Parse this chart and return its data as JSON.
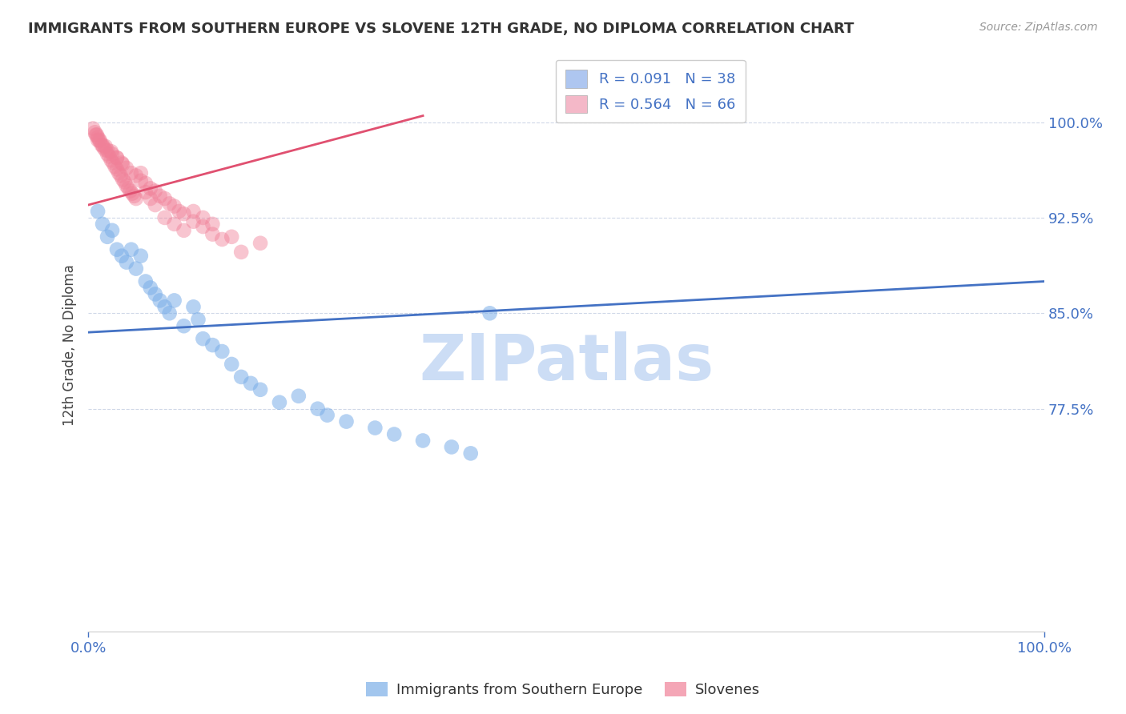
{
  "title": "IMMIGRANTS FROM SOUTHERN EUROPE VS SLOVENE 12TH GRADE, NO DIPLOMA CORRELATION CHART",
  "source": "Source: ZipAtlas.com",
  "ylabel": "12th Grade, No Diploma",
  "y_ticks": [
    0.775,
    0.85,
    0.925,
    1.0
  ],
  "y_tick_labels": [
    "77.5%",
    "85.0%",
    "92.5%",
    "100.0%"
  ],
  "x_range": [
    0.0,
    1.0
  ],
  "y_range": [
    0.6,
    1.05
  ],
  "legend_entries": [
    {
      "label": "R = 0.091   N = 38",
      "color": "#aec6f0"
    },
    {
      "label": "R = 0.564   N = 66",
      "color": "#f4b8c8"
    }
  ],
  "series1_label": "Immigrants from Southern Europe",
  "series2_label": "Slovenes",
  "series1_color": "#7baee8",
  "series2_color": "#f08098",
  "series1_trendline_color": "#4472c4",
  "series2_trendline_color": "#e05070",
  "watermark": "ZIPatlas",
  "watermark_color": "#ccddf5",
  "background_color": "#ffffff",
  "grid_color": "#d0d8e8",
  "title_color": "#333333",
  "source_color": "#999999",
  "axis_label_color": "#4472c4",
  "series1_x": [
    0.01,
    0.015,
    0.02,
    0.025,
    0.03,
    0.035,
    0.04,
    0.045,
    0.05,
    0.055,
    0.06,
    0.065,
    0.07,
    0.075,
    0.08,
    0.085,
    0.09,
    0.1,
    0.11,
    0.115,
    0.12,
    0.13,
    0.14,
    0.15,
    0.16,
    0.17,
    0.18,
    0.2,
    0.22,
    0.24,
    0.25,
    0.27,
    0.3,
    0.32,
    0.35,
    0.38,
    0.4,
    0.42
  ],
  "series1_y": [
    0.93,
    0.92,
    0.91,
    0.915,
    0.9,
    0.895,
    0.89,
    0.9,
    0.885,
    0.895,
    0.875,
    0.87,
    0.865,
    0.86,
    0.855,
    0.85,
    0.86,
    0.84,
    0.855,
    0.845,
    0.83,
    0.825,
    0.82,
    0.81,
    0.8,
    0.795,
    0.79,
    0.78,
    0.785,
    0.775,
    0.77,
    0.765,
    0.76,
    0.755,
    0.75,
    0.745,
    0.74,
    0.85
  ],
  "series2_x": [
    0.005,
    0.007,
    0.009,
    0.01,
    0.012,
    0.014,
    0.016,
    0.018,
    0.02,
    0.022,
    0.024,
    0.026,
    0.028,
    0.03,
    0.032,
    0.034,
    0.036,
    0.038,
    0.04,
    0.042,
    0.044,
    0.046,
    0.048,
    0.05,
    0.055,
    0.06,
    0.065,
    0.07,
    0.08,
    0.09,
    0.1,
    0.11,
    0.12,
    0.13,
    0.15,
    0.18,
    0.01,
    0.015,
    0.02,
    0.025,
    0.03,
    0.035,
    0.04,
    0.05,
    0.06,
    0.07,
    0.08,
    0.09,
    0.1,
    0.12,
    0.14,
    0.16,
    0.008,
    0.012,
    0.018,
    0.024,
    0.03,
    0.036,
    0.045,
    0.055,
    0.065,
    0.075,
    0.085,
    0.095,
    0.11,
    0.13
  ],
  "series2_y": [
    0.995,
    0.992,
    0.99,
    0.988,
    0.985,
    0.982,
    0.98,
    0.978,
    0.975,
    0.973,
    0.97,
    0.968,
    0.965,
    0.963,
    0.96,
    0.958,
    0.955,
    0.953,
    0.95,
    0.948,
    0.946,
    0.944,
    0.942,
    0.94,
    0.96,
    0.945,
    0.94,
    0.935,
    0.925,
    0.92,
    0.915,
    0.93,
    0.925,
    0.92,
    0.91,
    0.905,
    0.986,
    0.982,
    0.978,
    0.975,
    0.972,
    0.968,
    0.964,
    0.958,
    0.952,
    0.946,
    0.94,
    0.934,
    0.928,
    0.918,
    0.908,
    0.898,
    0.99,
    0.986,
    0.981,
    0.977,
    0.972,
    0.967,
    0.96,
    0.954,
    0.948,
    0.942,
    0.936,
    0.93,
    0.922,
    0.912
  ],
  "trendline1_x0": 0.0,
  "trendline1_y0": 0.835,
  "trendline1_x1": 1.0,
  "trendline1_y1": 0.875,
  "trendline2_x0": 0.0,
  "trendline2_y0": 0.935,
  "trendline2_x1": 0.35,
  "trendline2_y1": 1.005
}
